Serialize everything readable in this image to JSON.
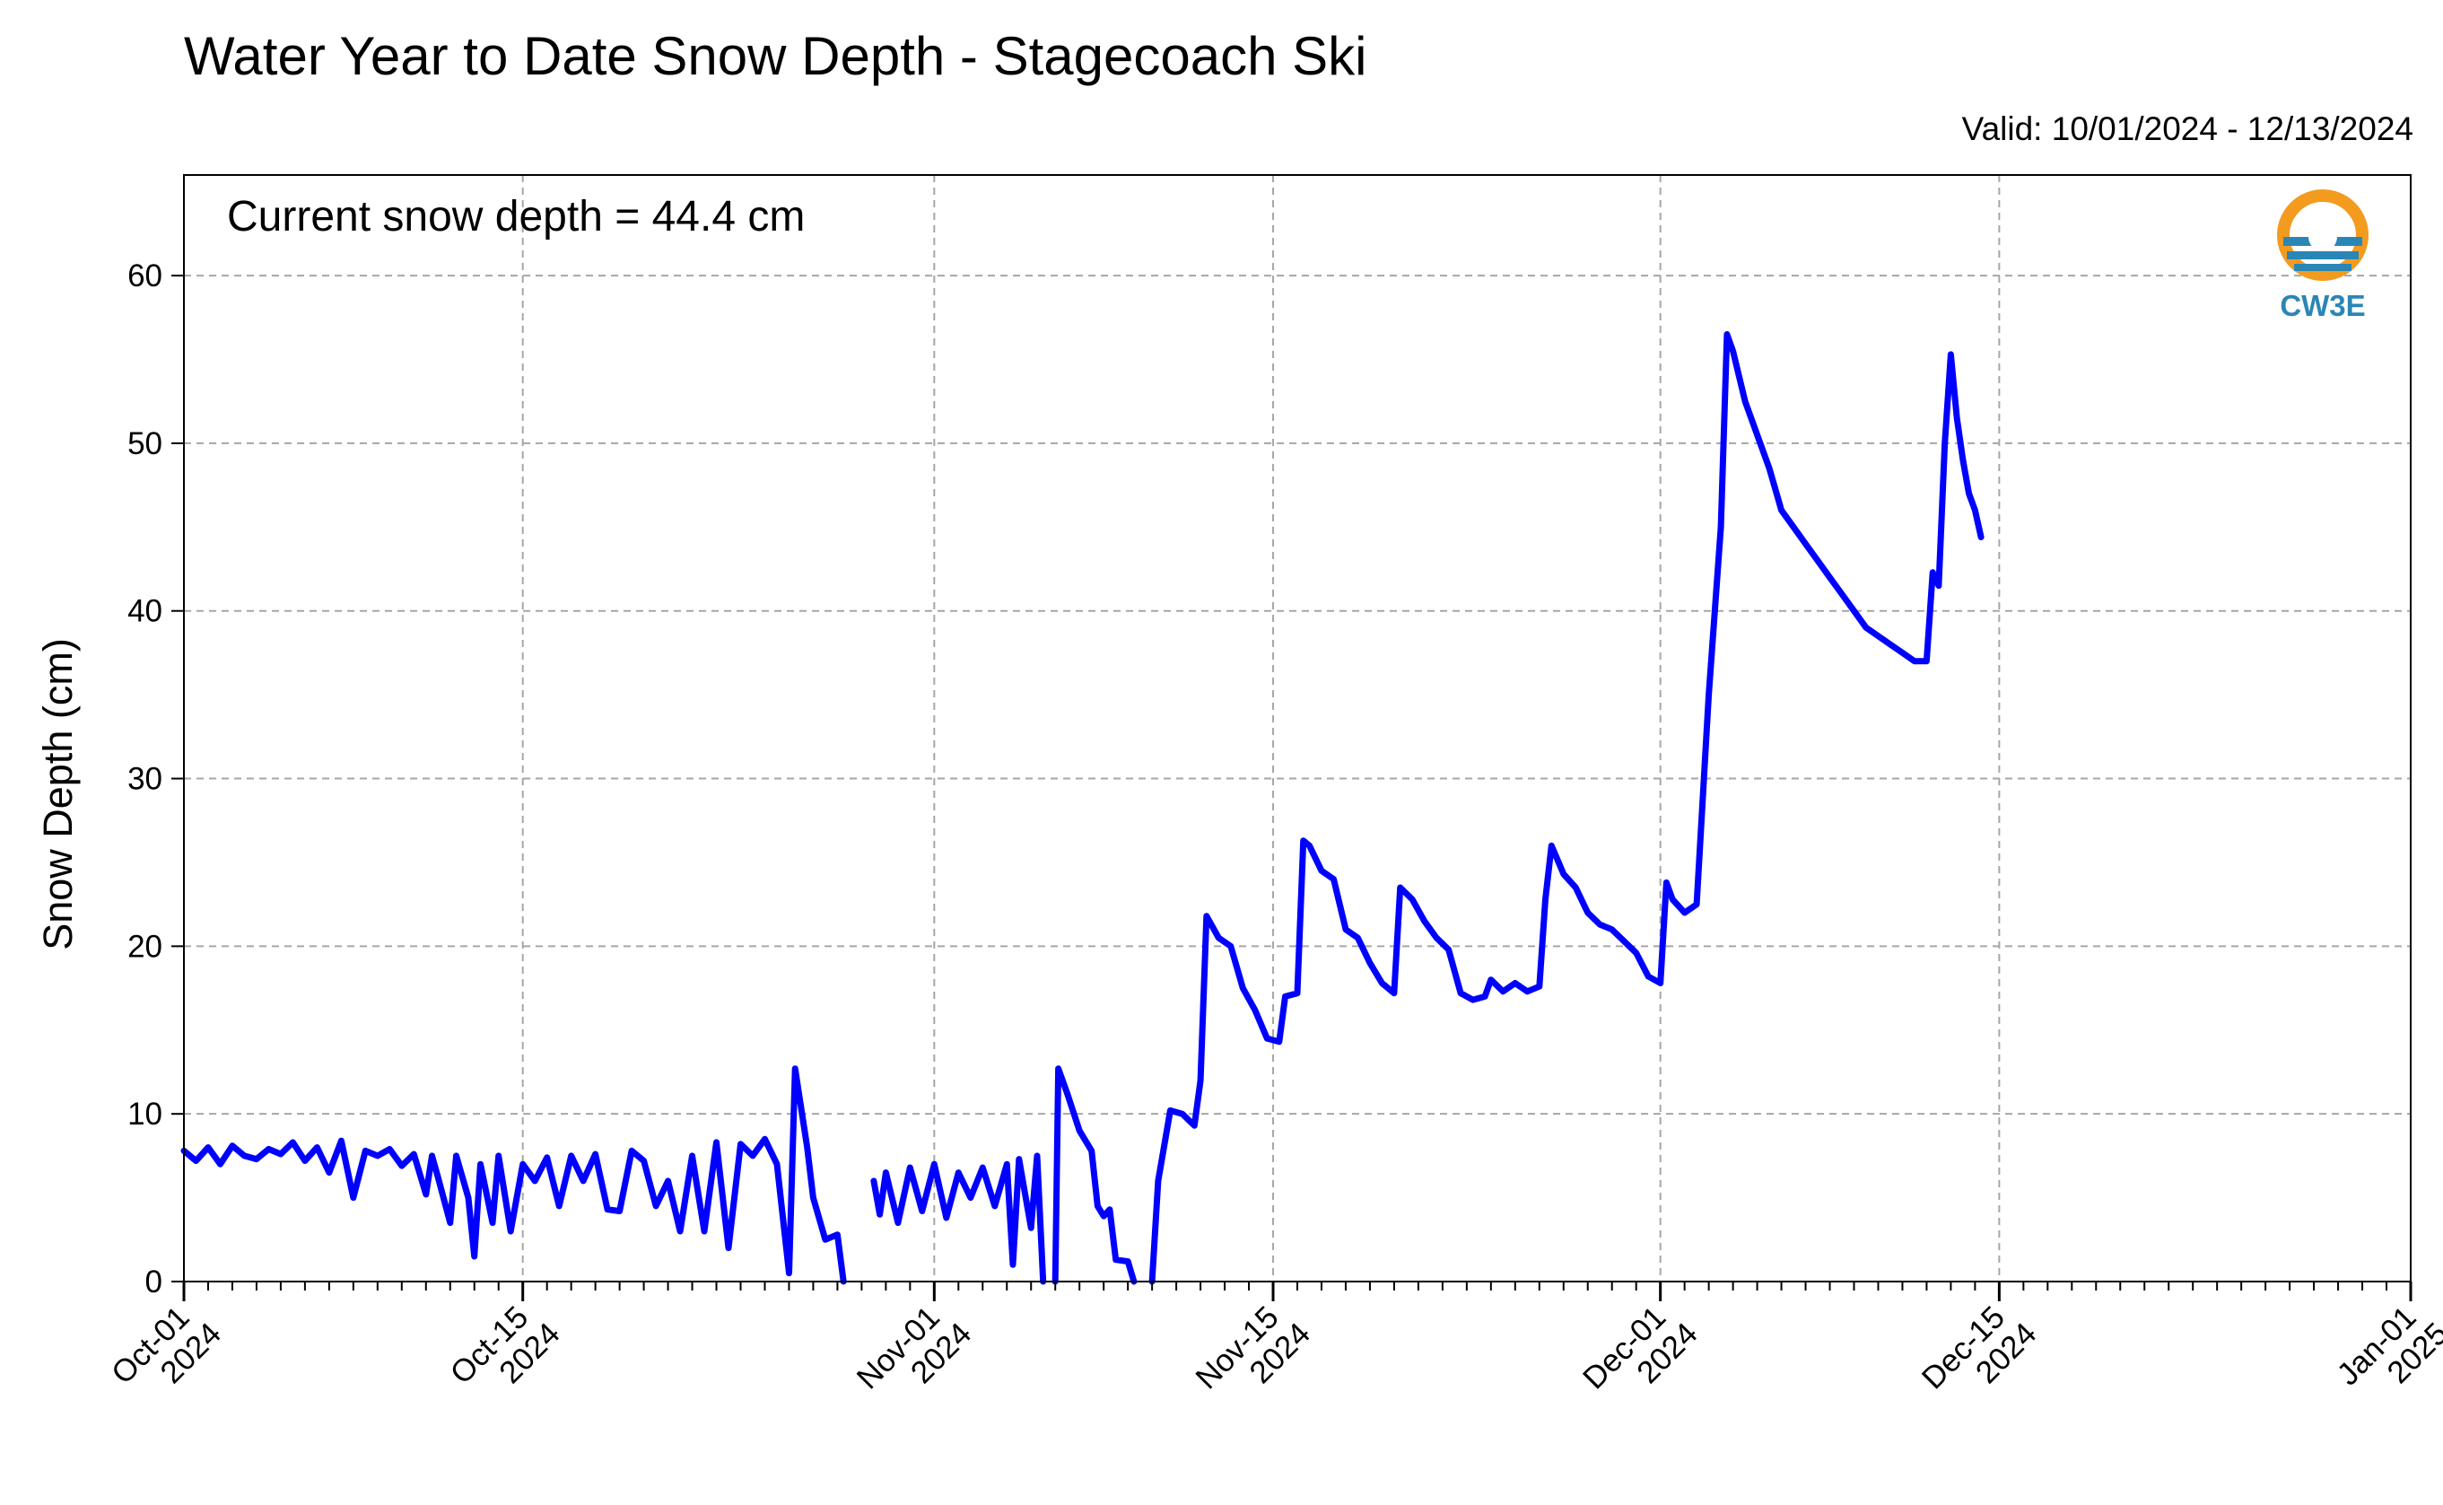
{
  "colors": {
    "series": "#0000ff",
    "grid": "#a6a6a6",
    "logo_orange": "#f39b1f",
    "logo_blue": "#2a86b5"
  },
  "logo": {
    "text": "CW3E",
    "icon": "cw3e-water-drop-logo"
  },
  "chart_data": {
    "type": "line",
    "title": "Water Year to Date Snow Depth - Stagecoach Ski",
    "subtitle": "Valid: 10/01/2024 - 12/13/2024",
    "annotation": "Current snow depth = 44.4 cm",
    "ylabel": "Snow Depth (cm)",
    "xlabel": "",
    "xlim": [
      "2024-10-01",
      "2025-01-01"
    ],
    "ylim": [
      0,
      66
    ],
    "yticks": [
      0,
      10,
      20,
      30,
      40,
      50,
      60
    ],
    "xticks": [
      {
        "date": "2024-10-01",
        "line1": "Oct-01",
        "line2": "2024"
      },
      {
        "date": "2024-10-15",
        "line1": "Oct-15",
        "line2": "2024"
      },
      {
        "date": "2024-11-01",
        "line1": "Nov-01",
        "line2": "2024"
      },
      {
        "date": "2024-11-15",
        "line1": "Nov-15",
        "line2": "2024"
      },
      {
        "date": "2024-12-01",
        "line1": "Dec-01",
        "line2": "2024"
      },
      {
        "date": "2024-12-15",
        "line1": "Dec-15",
        "line2": "2024"
      },
      {
        "date": "2025-01-01",
        "line1": "Jan-01",
        "line2": "2025"
      }
    ],
    "grid": true,
    "series": [
      {
        "points": [
          [
            "2024-10-01T00:00",
            7.8
          ],
          [
            "2024-10-01T12:00",
            7.2
          ],
          [
            "2024-10-02T00:00",
            8.0
          ],
          [
            "2024-10-02T12:00",
            7.0
          ],
          [
            "2024-10-03T00:00",
            8.1
          ],
          [
            "2024-10-03T12:00",
            7.5
          ],
          [
            "2024-10-04T00:00",
            7.3
          ],
          [
            "2024-10-04T12:00",
            7.9
          ],
          [
            "2024-10-05T00:00",
            7.6
          ],
          [
            "2024-10-05T12:00",
            8.3
          ],
          [
            "2024-10-06T00:00",
            7.2
          ],
          [
            "2024-10-06T12:00",
            8.0
          ],
          [
            "2024-10-07T00:00",
            6.5
          ],
          [
            "2024-10-07T12:00",
            8.4
          ],
          [
            "2024-10-08T00:00",
            5.0
          ],
          [
            "2024-10-08T12:00",
            7.8
          ],
          [
            "2024-10-09T00:00",
            7.5
          ],
          [
            "2024-10-09T12:00",
            7.9
          ],
          [
            "2024-10-10T00:00",
            6.9
          ],
          [
            "2024-10-10T12:00",
            7.6
          ],
          [
            "2024-10-11T00:00",
            5.2
          ],
          [
            "2024-10-11T06:00",
            7.5
          ],
          [
            "2024-10-11T12:00",
            6.2
          ],
          [
            "2024-10-12T00:00",
            3.5
          ],
          [
            "2024-10-12T06:00",
            7.5
          ],
          [
            "2024-10-12T18:00",
            5.0
          ],
          [
            "2024-10-13T00:00",
            1.5
          ],
          [
            "2024-10-13T06:00",
            7.0
          ],
          [
            "2024-10-13T18:00",
            3.5
          ],
          [
            "2024-10-14T00:00",
            7.5
          ],
          [
            "2024-10-14T12:00",
            3.0
          ],
          [
            "2024-10-15T00:00",
            7.0
          ],
          [
            "2024-10-15T12:00",
            6.0
          ],
          [
            "2024-10-16T00:00",
            7.4
          ],
          [
            "2024-10-16T12:00",
            4.5
          ],
          [
            "2024-10-17T00:00",
            7.5
          ],
          [
            "2024-10-17T12:00",
            6.0
          ],
          [
            "2024-10-18T00:00",
            7.6
          ],
          [
            "2024-10-18T12:00",
            4.3
          ],
          [
            "2024-10-19T00:00",
            4.2
          ],
          [
            "2024-10-19T12:00",
            7.8
          ],
          [
            "2024-10-20T00:00",
            7.2
          ],
          [
            "2024-10-20T12:00",
            4.5
          ],
          [
            "2024-10-21T00:00",
            6.0
          ],
          [
            "2024-10-21T12:00",
            3.0
          ],
          [
            "2024-10-22T00:00",
            7.5
          ],
          [
            "2024-10-22T12:00",
            3.0
          ],
          [
            "2024-10-23T00:00",
            8.3
          ],
          [
            "2024-10-23T12:00",
            2.0
          ],
          [
            "2024-10-24T00:00",
            8.2
          ],
          [
            "2024-10-24T12:00",
            7.5
          ],
          [
            "2024-10-25T00:00",
            8.5
          ],
          [
            "2024-10-25T12:00",
            7.0
          ],
          [
            "2024-10-26T00:00",
            0.5
          ],
          [
            "2024-10-26T06:00",
            12.7
          ],
          [
            "2024-10-26T18:00",
            8.0
          ],
          [
            "2024-10-27T00:00",
            5.0
          ],
          [
            "2024-10-27T12:00",
            2.5
          ],
          [
            "2024-10-28T00:00",
            2.8
          ],
          [
            "2024-10-28T06:00",
            0.0
          ],
          null,
          [
            "2024-10-29T12:00",
            6.0
          ],
          [
            "2024-10-29T18:00",
            4.0
          ],
          [
            "2024-10-30T00:00",
            6.5
          ],
          [
            "2024-10-30T12:00",
            3.5
          ],
          [
            "2024-10-31T00:00",
            6.8
          ],
          [
            "2024-10-31T12:00",
            4.2
          ],
          [
            "2024-11-01T00:00",
            7.0
          ],
          [
            "2024-11-01T12:00",
            3.8
          ],
          [
            "2024-11-02T00:00",
            6.5
          ],
          [
            "2024-11-02T12:00",
            5.0
          ],
          [
            "2024-11-03T00:00",
            6.8
          ],
          [
            "2024-11-03T12:00",
            4.5
          ],
          [
            "2024-11-04T00:00",
            7.0
          ],
          [
            "2024-11-04T06:00",
            1.0
          ],
          [
            "2024-11-04T12:00",
            7.3
          ],
          [
            "2024-11-05T00:00",
            3.2
          ],
          [
            "2024-11-05T06:00",
            7.5
          ],
          [
            "2024-11-05T12:00",
            0.0
          ],
          null,
          [
            "2024-11-06T00:00",
            0.0
          ],
          [
            "2024-11-06T03:00",
            12.7
          ],
          [
            "2024-11-06T12:00",
            11.2
          ],
          [
            "2024-11-07T00:00",
            9.0
          ],
          [
            "2024-11-07T12:00",
            7.8
          ],
          [
            "2024-11-07T18:00",
            4.5
          ],
          [
            "2024-11-08T00:00",
            3.9
          ],
          [
            "2024-11-08T06:00",
            4.3
          ],
          [
            "2024-11-08T12:00",
            1.3
          ],
          [
            "2024-11-09T00:00",
            1.2
          ],
          [
            "2024-11-09T06:00",
            0.0
          ],
          null,
          [
            "2024-11-10T00:00",
            0.0
          ],
          [
            "2024-11-10T06:00",
            6.0
          ],
          [
            "2024-11-10T18:00",
            10.2
          ],
          [
            "2024-11-11T06:00",
            10.0
          ],
          [
            "2024-11-11T18:00",
            9.3
          ],
          [
            "2024-11-12T00:00",
            12.0
          ],
          [
            "2024-11-12T06:00",
            21.8
          ],
          [
            "2024-11-12T18:00",
            20.5
          ],
          [
            "2024-11-13T06:00",
            20.0
          ],
          [
            "2024-11-13T18:00",
            17.5
          ],
          [
            "2024-11-14T06:00",
            16.2
          ],
          [
            "2024-11-14T18:00",
            14.5
          ],
          [
            "2024-11-15T06:00",
            14.3
          ],
          [
            "2024-11-15T12:00",
            17.0
          ],
          [
            "2024-11-16T00:00",
            17.2
          ],
          [
            "2024-11-16T06:00",
            26.3
          ],
          [
            "2024-11-16T12:00",
            26.0
          ],
          [
            "2024-11-17T00:00",
            24.5
          ],
          [
            "2024-11-17T12:00",
            24.0
          ],
          [
            "2024-11-18T00:00",
            21.0
          ],
          [
            "2024-11-18T12:00",
            20.5
          ],
          [
            "2024-11-19T00:00",
            19.0
          ],
          [
            "2024-11-19T12:00",
            17.8
          ],
          [
            "2024-11-20T00:00",
            17.2
          ],
          [
            "2024-11-20T06:00",
            23.5
          ],
          [
            "2024-11-20T18:00",
            22.8
          ],
          [
            "2024-11-21T06:00",
            21.5
          ],
          [
            "2024-11-21T18:00",
            20.5
          ],
          [
            "2024-11-22T06:00",
            19.8
          ],
          [
            "2024-11-22T18:00",
            17.2
          ],
          [
            "2024-11-23T06:00",
            16.8
          ],
          [
            "2024-11-23T18:00",
            17.0
          ],
          [
            "2024-11-24T00:00",
            18.0
          ],
          [
            "2024-11-24T12:00",
            17.3
          ],
          [
            "2024-11-25T00:00",
            17.8
          ],
          [
            "2024-11-25T12:00",
            17.3
          ],
          [
            "2024-11-26T00:00",
            17.6
          ],
          [
            "2024-11-26T06:00",
            22.8
          ],
          [
            "2024-11-26T12:00",
            26.0
          ],
          [
            "2024-11-27T00:00",
            24.3
          ],
          [
            "2024-11-27T12:00",
            23.5
          ],
          [
            "2024-11-28T00:00",
            22.0
          ],
          [
            "2024-11-28T12:00",
            21.3
          ],
          [
            "2024-11-29T00:00",
            21.0
          ],
          [
            "2024-11-29T12:00",
            20.3
          ],
          [
            "2024-11-30T00:00",
            19.6
          ],
          [
            "2024-11-30T12:00",
            18.2
          ],
          [
            "2024-12-01T00:00",
            17.8
          ],
          [
            "2024-12-01T06:00",
            23.8
          ],
          [
            "2024-12-01T12:00",
            22.8
          ],
          [
            "2024-12-02T00:00",
            22.0
          ],
          [
            "2024-12-02T12:00",
            22.5
          ],
          [
            "2024-12-03T00:00",
            35.0
          ],
          [
            "2024-12-03T12:00",
            45.0
          ],
          [
            "2024-12-03T18:00",
            56.5
          ],
          [
            "2024-12-04T00:00",
            55.5
          ],
          [
            "2024-12-04T12:00",
            52.5
          ],
          [
            "2024-12-05T00:00",
            50.5
          ],
          [
            "2024-12-05T12:00",
            48.5
          ],
          [
            "2024-12-06T00:00",
            46.0
          ],
          [
            "2024-12-06T12:00",
            45.0
          ],
          [
            "2024-12-07T00:00",
            44.0
          ],
          [
            "2024-12-07T12:00",
            43.0
          ],
          [
            "2024-12-08T00:00",
            42.0
          ],
          [
            "2024-12-08T12:00",
            41.0
          ],
          [
            "2024-12-09T00:00",
            40.0
          ],
          [
            "2024-12-09T12:00",
            39.0
          ],
          [
            "2024-12-10T00:00",
            38.5
          ],
          [
            "2024-12-10T12:00",
            38.0
          ],
          [
            "2024-12-11T00:00",
            37.5
          ],
          [
            "2024-12-11T12:00",
            37.0
          ],
          [
            "2024-12-12T00:00",
            37.0
          ],
          [
            "2024-12-12T06:00",
            42.3
          ],
          [
            "2024-12-12T12:00",
            41.5
          ],
          [
            "2024-12-12T18:00",
            50.0
          ],
          [
            "2024-12-13T00:00",
            55.3
          ],
          [
            "2024-12-13T06:00",
            51.5
          ],
          [
            "2024-12-13T12:00",
            49.0
          ],
          [
            "2024-12-13T18:00",
            47.0
          ],
          [
            "2024-12-14T00:00",
            46.0
          ],
          [
            "2024-12-14T06:00",
            44.4
          ]
        ]
      }
    ]
  }
}
